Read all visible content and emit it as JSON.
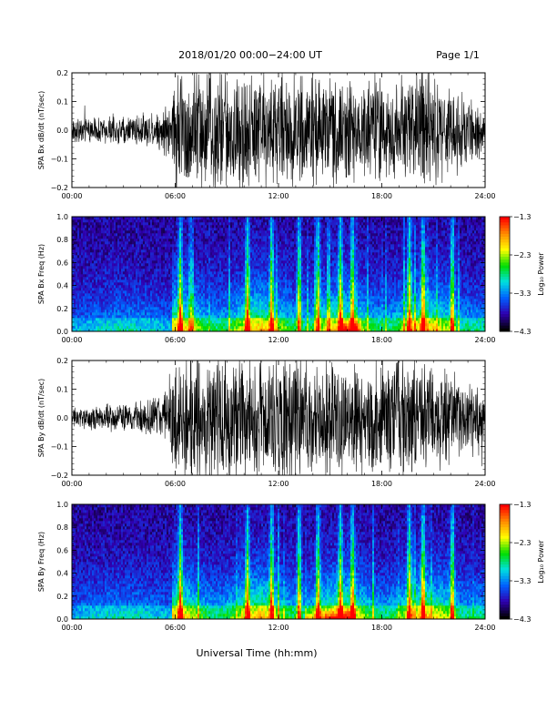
{
  "header": {
    "title": "2018/01/20  00:00−24:00 UT",
    "page": "Page 1/1"
  },
  "footer": {
    "xlabel": "Universal Time (hh:mm)"
  },
  "time_ticks": [
    "00:00",
    "06:00",
    "12:00",
    "18:00",
    "24:00"
  ],
  "colorbar": {
    "ticks": [
      "−1.3",
      "−2.3",
      "−3.3",
      "−4.3"
    ],
    "label": "Log₁₀ Power",
    "colors": [
      "#ff0000",
      "#ff8c00",
      "#ffff00",
      "#00dd00",
      "#00e0e0",
      "#0060ff",
      "#3000b0",
      "#000000"
    ]
  },
  "chart_data": [
    {
      "type": "line",
      "ylabel": "SPA Bx dB/dt (nT/sec)",
      "xlim": [
        "00:00",
        "24:00"
      ],
      "ylim": [
        -0.2,
        0.2
      ],
      "yticks": [
        "0.2",
        "0.1",
        "0.0",
        "−0.1",
        "−0.2"
      ],
      "envelope": {
        "x_hours": [
          0,
          3,
          5,
          5.7,
          6,
          7,
          9,
          11,
          13,
          15,
          17,
          19,
          20.5,
          22,
          23,
          24
        ],
        "amplitude": [
          0.04,
          0.045,
          0.06,
          0.09,
          0.2,
          0.2,
          0.2,
          0.19,
          0.18,
          0.17,
          0.16,
          0.17,
          0.2,
          0.14,
          0.1,
          0.08
        ]
      }
    },
    {
      "type": "heatmap",
      "ylabel": "SPA Bx Freq (Hz)",
      "xlim": [
        "00:00",
        "24:00"
      ],
      "ylim": [
        0.0,
        1.0
      ],
      "yticks": [
        "1.0",
        "0.8",
        "0.6",
        "0.4",
        "0.2",
        "0.0"
      ],
      "zlim": [
        -4.3,
        -1.3
      ],
      "bursts_hours": [
        6.3,
        10.2,
        11.6,
        13.2,
        14.3,
        15.6,
        16.3,
        19.6,
        20.4,
        22.1
      ],
      "peak_hours": [
        15.5,
        16.8
      ]
    },
    {
      "type": "line",
      "ylabel": "SPA By dB/dt (nT/sec)",
      "xlim": [
        "00:00",
        "24:00"
      ],
      "ylim": [
        -0.2,
        0.2
      ],
      "yticks": [
        "0.2",
        "0.1",
        "0.0",
        "−0.1",
        "−0.2"
      ],
      "envelope": {
        "x_hours": [
          0,
          3,
          5,
          5.7,
          6,
          7,
          9,
          11,
          13,
          15,
          17,
          19,
          20.5,
          22,
          23,
          24
        ],
        "amplitude": [
          0.035,
          0.045,
          0.07,
          0.1,
          0.2,
          0.2,
          0.2,
          0.2,
          0.19,
          0.18,
          0.17,
          0.2,
          0.2,
          0.15,
          0.11,
          0.08
        ]
      }
    },
    {
      "type": "heatmap",
      "ylabel": "SPA By Freq (Hz)",
      "xlim": [
        "00:00",
        "24:00"
      ],
      "ylim": [
        0.0,
        1.0
      ],
      "yticks": [
        "1.0",
        "0.8",
        "0.6",
        "0.4",
        "0.2",
        "0.0"
      ],
      "zlim": [
        -4.3,
        -1.3
      ],
      "bursts_hours": [
        6.3,
        10.2,
        11.6,
        13.2,
        14.3,
        15.6,
        16.3,
        19.6,
        20.4,
        22.1
      ],
      "peak_hours": [
        13.5,
        16.5
      ]
    }
  ]
}
